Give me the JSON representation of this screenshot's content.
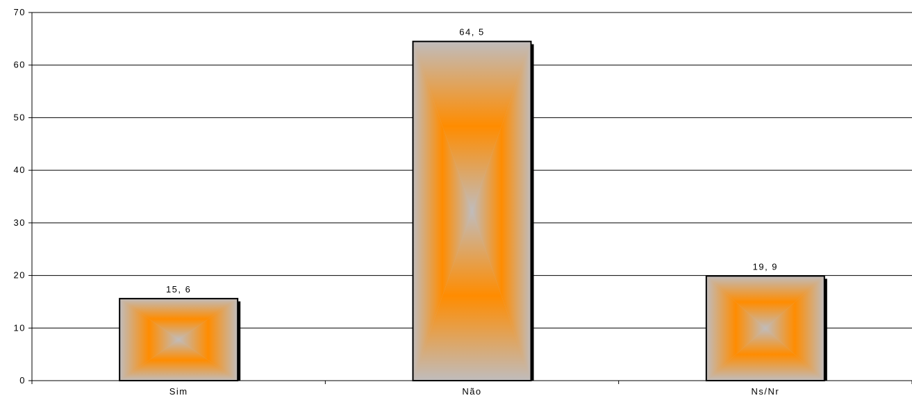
{
  "chart_data": {
    "type": "bar",
    "categories": [
      "Sim",
      "Não",
      "Ns/Nr"
    ],
    "values": [
      15.6,
      64.5,
      19.9
    ],
    "data_labels": [
      "15, 6",
      "64, 5",
      "19, 9"
    ],
    "ylim": [
      0,
      70
    ],
    "yticks": [
      0,
      10,
      20,
      30,
      40,
      50,
      60,
      70
    ],
    "grid": true,
    "legend": "none",
    "colors": {
      "bar_edge": "#c0bcbc",
      "bar_center": "#ff8c00",
      "outline": "#000000",
      "shadow": "#000000",
      "grid": "#000000"
    }
  }
}
